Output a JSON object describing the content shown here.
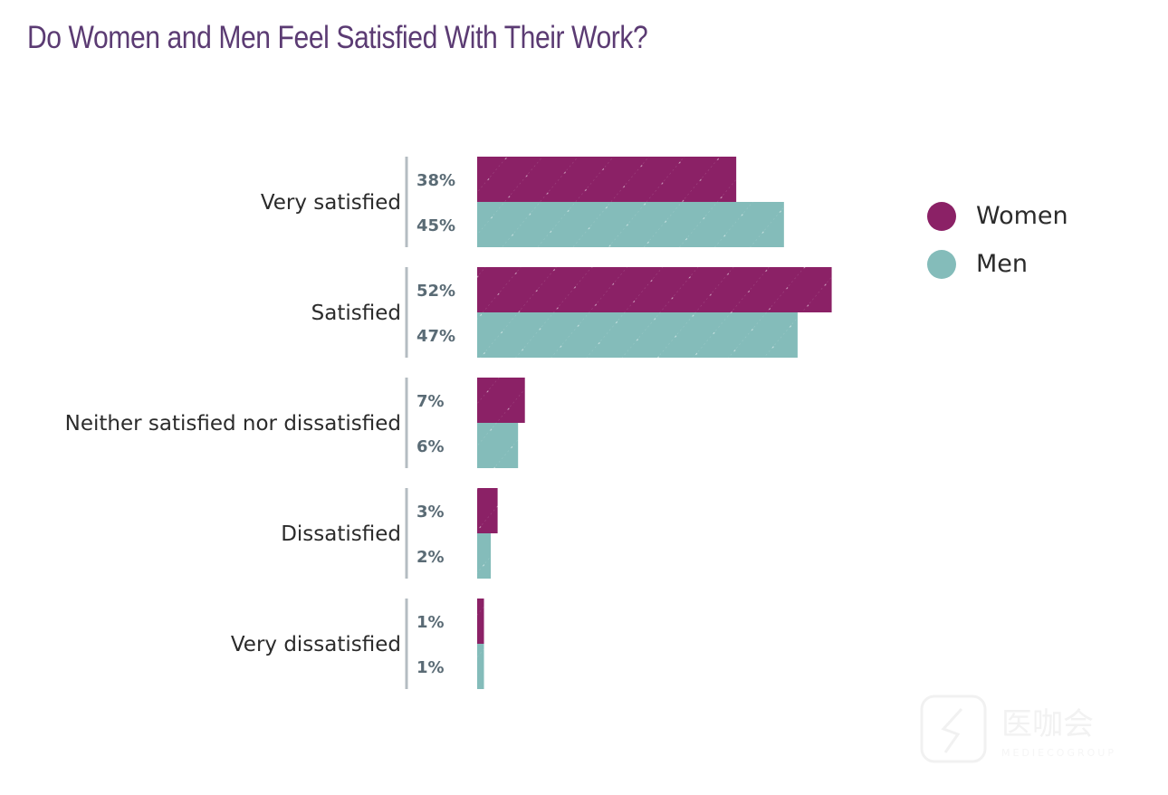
{
  "chart_data": {
    "type": "bar",
    "orientation": "horizontal",
    "title": "Do Women and Men Feel Satisfied With Their Work?",
    "xlabel": "",
    "ylabel": "",
    "categories": [
      "Very satisfied",
      "Satisfied",
      "Neither satisfied nor dissatisfied",
      "Dissatisfied",
      "Very dissatisfied"
    ],
    "series": [
      {
        "name": "Women",
        "color": "#8b2166",
        "values": [
          38,
          52,
          7,
          3,
          1
        ],
        "labels": [
          "38%",
          "52%",
          "7%",
          "3%",
          "1%"
        ]
      },
      {
        "name": "Men",
        "color": "#84bcba",
        "values": [
          45,
          47,
          6,
          2,
          1
        ],
        "labels": [
          "45%",
          "47%",
          "6%",
          "2%",
          "1%"
        ]
      }
    ],
    "value_unit": "%",
    "xlim": [
      0,
      100
    ],
    "grid": false,
    "legend_position": "top-right"
  },
  "watermark": {
    "text_cn": "医咖会",
    "text_en": "MEDIECOGROUP"
  }
}
